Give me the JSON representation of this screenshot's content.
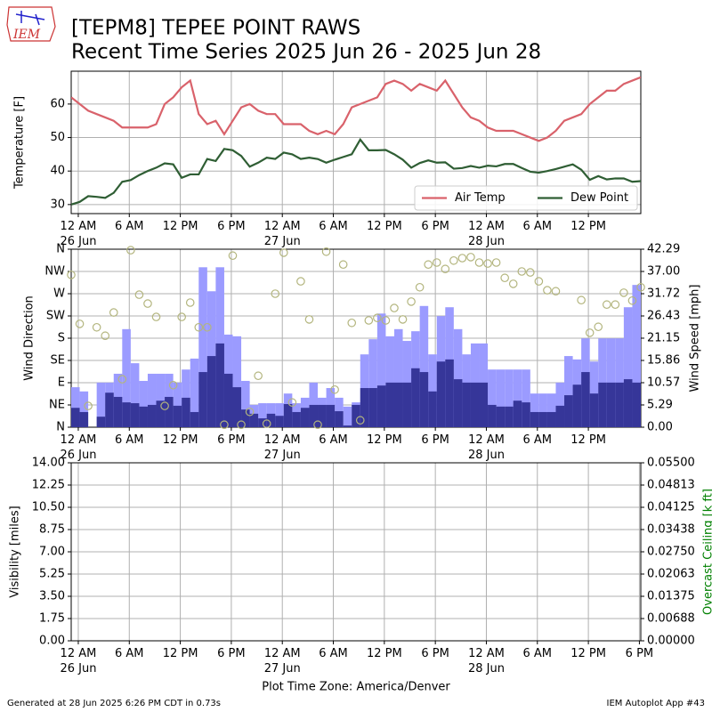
{
  "title": "[TEPM8] TEPEE POINT RAWS",
  "subtitle": "Recent Time Series 2025 Jun 26 - 2025 Jun 28",
  "logo": "IEM",
  "xlabel": "Plot Time Zone: America/Denver",
  "footer_left": "Generated at 28 Jun 2025 6:26 PM CDT in 0.73s",
  "footer_right": "IEM Autoplot App #43",
  "chart_data": [
    {
      "type": "line",
      "ylabel": "Temperature [F]",
      "grid": true,
      "legend": "lower right",
      "xlim": [
        "2025-06-25T23:10",
        "2025-06-28T18:10"
      ],
      "xticks": [
        {
          "value": "2025-06-26T00:00",
          "label": "12 AM\n26 Jun"
        },
        {
          "value": "2025-06-26T06:00",
          "label": "6 AM"
        },
        {
          "value": "2025-06-26T12:00",
          "label": "12 PM"
        },
        {
          "value": "2025-06-26T18:00",
          "label": "6 PM"
        },
        {
          "value": "2025-06-27T00:00",
          "label": "12 AM\n27 Jun"
        },
        {
          "value": "2025-06-27T06:00",
          "label": "6 AM"
        },
        {
          "value": "2025-06-27T12:00",
          "label": "12 PM"
        },
        {
          "value": "2025-06-27T18:00",
          "label": "6 PM"
        },
        {
          "value": "2025-06-28T00:00",
          "label": "12 AM\n28 Jun"
        },
        {
          "value": "2025-06-28T06:00",
          "label": "6 AM"
        },
        {
          "value": "2025-06-28T12:00",
          "label": "12 PM"
        }
      ],
      "ylim": [
        27.3,
        69.8
      ],
      "yticks": [
        30,
        40,
        50,
        60
      ],
      "x": [
        "2025-06-25T23:10",
        "2025-06-26T00:10",
        "2025-06-26T01:10",
        "2025-06-26T02:10",
        "2025-06-26T03:10",
        "2025-06-26T04:10",
        "2025-06-26T05:10",
        "2025-06-26T06:10",
        "2025-06-26T07:10",
        "2025-06-26T08:10",
        "2025-06-26T09:10",
        "2025-06-26T10:10",
        "2025-06-26T11:10",
        "2025-06-26T12:10",
        "2025-06-26T13:10",
        "2025-06-26T14:10",
        "2025-06-26T15:10",
        "2025-06-26T16:10",
        "2025-06-26T17:10",
        "2025-06-26T18:10",
        "2025-06-26T19:10",
        "2025-06-26T20:10",
        "2025-06-26T21:10",
        "2025-06-26T22:10",
        "2025-06-26T23:10",
        "2025-06-27T00:10",
        "2025-06-27T01:10",
        "2025-06-27T02:10",
        "2025-06-27T03:10",
        "2025-06-27T04:10",
        "2025-06-27T05:10",
        "2025-06-27T06:10",
        "2025-06-27T07:10",
        "2025-06-27T08:10",
        "2025-06-27T09:10",
        "2025-06-27T10:10",
        "2025-06-27T11:10",
        "2025-06-27T12:10",
        "2025-06-27T13:10",
        "2025-06-27T14:10",
        "2025-06-27T15:10",
        "2025-06-27T16:10",
        "2025-06-27T17:10",
        "2025-06-27T18:10",
        "2025-06-27T19:10",
        "2025-06-27T20:10",
        "2025-06-27T21:10",
        "2025-06-27T22:10",
        "2025-06-27T23:10",
        "2025-06-28T00:10",
        "2025-06-28T01:10",
        "2025-06-28T02:10",
        "2025-06-28T03:10",
        "2025-06-28T04:10",
        "2025-06-28T05:10",
        "2025-06-28T06:10",
        "2025-06-28T07:10",
        "2025-06-28T08:10",
        "2025-06-28T09:10",
        "2025-06-28T10:10",
        "2025-06-28T11:10",
        "2025-06-28T12:10",
        "2025-06-28T13:10",
        "2025-06-28T14:10",
        "2025-06-28T15:10",
        "2025-06-28T16:10",
        "2025-06-28T17:10",
        "2025-06-28T18:10"
      ],
      "series": [
        {
          "name": "Air Temp",
          "color": "#d9626b",
          "values": [
            62,
            60,
            58,
            57,
            56,
            55,
            53,
            53,
            53,
            53,
            54,
            60,
            62,
            65,
            67,
            57,
            54,
            55,
            51,
            55,
            59,
            60,
            58,
            57,
            57,
            54,
            54,
            54,
            52,
            51,
            52,
            51,
            54,
            59,
            60,
            61,
            62,
            66,
            67,
            66,
            64,
            66,
            65,
            64,
            67,
            63,
            59,
            56,
            55,
            53,
            52,
            52,
            52,
            51,
            50,
            49,
            50,
            52,
            55,
            56,
            57,
            60,
            62,
            64,
            64,
            66,
            67,
            68
          ]
        },
        {
          "name": "Dew Point",
          "color": "#2f5e34",
          "values": [
            30,
            30.8,
            32.5,
            32.3,
            32,
            33.5,
            36.8,
            37.3,
            38.8,
            40,
            41,
            42.3,
            42,
            38,
            39,
            39,
            43.6,
            43,
            46.6,
            46.2,
            44.5,
            41.3,
            42.5,
            44,
            43.6,
            45.5,
            45,
            43.6,
            44,
            43.6,
            42.5,
            43.4,
            44.2,
            45,
            49.4,
            46.2,
            46.2,
            46.3,
            45,
            43.4,
            41,
            42.4,
            43.2,
            42.5,
            42.6,
            40.7,
            40.9,
            41.5,
            41,
            41.6,
            41.4,
            42.1,
            42.1,
            40.9,
            39.8,
            39.5,
            40,
            40.6,
            41.3,
            42,
            40.4,
            37.4,
            38.5,
            37.5,
            37.8,
            37.8,
            36.8,
            37
          ]
        }
      ]
    },
    {
      "type": "wind",
      "ylabel": "Wind Direction",
      "y2label": "Wind Speed [mph]",
      "grid": true,
      "xlim": [
        "2025-06-25T23:10",
        "2025-06-28T18:10"
      ],
      "xticks": [
        {
          "value": "2025-06-26T00:00",
          "label": "12 AM\n26 Jun"
        },
        {
          "value": "2025-06-26T06:00",
          "label": "6 AM"
        },
        {
          "value": "2025-06-26T12:00",
          "label": "12 PM"
        },
        {
          "value": "2025-06-26T18:00",
          "label": "6 PM"
        },
        {
          "value": "2025-06-27T00:00",
          "label": "12 AM\n27 Jun"
        },
        {
          "value": "2025-06-27T06:00",
          "label": "6 AM"
        },
        {
          "value": "2025-06-27T12:00",
          "label": "12 PM"
        },
        {
          "value": "2025-06-27T18:00",
          "label": "6 PM"
        },
        {
          "value": "2025-06-28T00:00",
          "label": "12 AM\n28 Jun"
        },
        {
          "value": "2025-06-28T06:00",
          "label": "6 AM"
        },
        {
          "value": "2025-06-28T12:00",
          "label": "12 PM"
        }
      ],
      "ylim": [
        0,
        360
      ],
      "yticks": [
        {
          "value": 0,
          "label": "N"
        },
        {
          "value": 45,
          "label": "NE"
        },
        {
          "value": 90,
          "label": "E"
        },
        {
          "value": 135,
          "label": "SE"
        },
        {
          "value": 180,
          "label": "S"
        },
        {
          "value": 225,
          "label": "SW"
        },
        {
          "value": 270,
          "label": "W"
        },
        {
          "value": 315,
          "label": "NW"
        },
        {
          "value": 360,
          "label": "N"
        }
      ],
      "y2lim": [
        0,
        42.29
      ],
      "y2ticks": [
        {
          "value": 0,
          "label": "0.00"
        },
        5.29,
        10.57,
        15.86,
        21.15,
        26.43,
        31.72,
        {
          "value": 37,
          "label": "37.00"
        },
        42.29
      ],
      "x": [
        "2025-06-25T23:10",
        "2025-06-26T00:10",
        "2025-06-26T01:10",
        "2025-06-26T02:10",
        "2025-06-26T03:10",
        "2025-06-26T04:10",
        "2025-06-26T05:10",
        "2025-06-26T06:10",
        "2025-06-26T07:10",
        "2025-06-26T08:10",
        "2025-06-26T09:10",
        "2025-06-26T10:10",
        "2025-06-26T11:10",
        "2025-06-26T12:10",
        "2025-06-26T13:10",
        "2025-06-26T14:10",
        "2025-06-26T15:10",
        "2025-06-26T16:10",
        "2025-06-26T17:10",
        "2025-06-26T18:10",
        "2025-06-26T19:10",
        "2025-06-26T20:10",
        "2025-06-26T21:10",
        "2025-06-26T22:10",
        "2025-06-26T23:10",
        "2025-06-27T00:10",
        "2025-06-27T01:10",
        "2025-06-27T02:10",
        "2025-06-27T03:10",
        "2025-06-27T04:10",
        "2025-06-27T05:10",
        "2025-06-27T06:10",
        "2025-06-27T07:10",
        "2025-06-27T08:10",
        "2025-06-27T09:10",
        "2025-06-27T10:10",
        "2025-06-27T11:10",
        "2025-06-27T12:10",
        "2025-06-27T13:10",
        "2025-06-27T14:10",
        "2025-06-27T15:10",
        "2025-06-27T16:10",
        "2025-06-27T17:10",
        "2025-06-27T18:10",
        "2025-06-27T19:10",
        "2025-06-27T20:10",
        "2025-06-27T21:10",
        "2025-06-27T22:10",
        "2025-06-27T23:10",
        "2025-06-28T00:10",
        "2025-06-28T01:10",
        "2025-06-28T02:10",
        "2025-06-28T03:10",
        "2025-06-28T04:10",
        "2025-06-28T05:10",
        "2025-06-28T06:10",
        "2025-06-28T07:10",
        "2025-06-28T08:10",
        "2025-06-28T09:10",
        "2025-06-28T10:10",
        "2025-06-28T11:10",
        "2025-06-28T12:10",
        "2025-06-28T13:10",
        "2025-06-28T14:10",
        "2025-06-28T15:10",
        "2025-06-28T16:10",
        "2025-06-28T17:10",
        "2025-06-28T18:10"
      ],
      "series": [
        {
          "kind": "bar",
          "axis": "y2",
          "color": "#9b9bff",
          "values": [
            9.5,
            8.5,
            0,
            10.6,
            10.6,
            12.7,
            23.3,
            15.2,
            11,
            12.7,
            12.7,
            12.7,
            10.6,
            13.7,
            16.3,
            38,
            32.3,
            38,
            22,
            21.6,
            11,
            5.3,
            5.7,
            5.7,
            5.7,
            8,
            5.7,
            7,
            10.6,
            7,
            9.3,
            7,
            4.9,
            5.9,
            17.3,
            20.9,
            27,
            21.6,
            23.3,
            20.5,
            22.8,
            28.8,
            17.3,
            26.4,
            28.5,
            23.3,
            17.3,
            19.9,
            19.9,
            13.7,
            13.7,
            13.7,
            13.7,
            13.7,
            8,
            8,
            8,
            10.6,
            16.9,
            16.1,
            21.1,
            15.6,
            21.1,
            21.1,
            21.1,
            28.5,
            33.8,
            27
          ]
        },
        {
          "kind": "bar",
          "axis": "y2",
          "color": "#363699",
          "values": [
            4.6,
            3.6,
            0,
            2.5,
            8.2,
            7.2,
            5.9,
            5.7,
            4.9,
            5.3,
            6.3,
            7.2,
            5.1,
            7,
            3.6,
            13.1,
            16.9,
            19.9,
            12.7,
            9.5,
            4.2,
            3.2,
            2.1,
            3.2,
            2.7,
            5.5,
            3.6,
            4.6,
            5.3,
            5.3,
            5.3,
            3.8,
            0.4,
            5.3,
            9.3,
            9.3,
            9.9,
            10.6,
            10.6,
            10.6,
            14,
            13.1,
            8.5,
            15.6,
            16.1,
            11.4,
            10.6,
            10.6,
            10.6,
            5.3,
            4.9,
            4.9,
            6.3,
            5.9,
            3.6,
            3.6,
            3.6,
            5.1,
            7.6,
            10.1,
            13.1,
            8,
            10.6,
            10.6,
            10.6,
            11.4,
            10.6,
            9.3
          ]
        },
        {
          "kind": "scatter",
          "axis": "y",
          "color": "#b3b57e",
          "values": [
            308,
            209,
            43,
            202,
            185,
            232,
            97,
            358,
            268,
            250,
            223,
            43,
            85,
            223,
            252,
            202,
            202,
            null,
            5,
            347,
            5,
            31,
            104,
            7,
            270,
            353,
            50,
            295,
            218,
            5,
            355,
            76,
            329,
            211,
            14,
            216,
            221,
            216,
            241,
            218,
            254,
            283,
            329,
            333,
            320,
            337,
            342,
            344,
            333,
            331,
            333,
            302,
            290,
            315,
            313,
            295,
            277,
            275,
            null,
            null,
            257,
            191,
            203,
            248,
            248,
            272,
            256,
            283
          ]
        }
      ]
    },
    {
      "type": "line",
      "ylabel": "Visibility [miles]",
      "y2label": "Overcast Ceiling [k ft]",
      "y2color": "#008000",
      "grid": true,
      "xlim": [
        "2025-06-25T23:10",
        "2025-06-28T18:10"
      ],
      "xticks": [
        {
          "value": "2025-06-26T00:00",
          "label": "12 AM\n26 Jun"
        },
        {
          "value": "2025-06-26T06:00",
          "label": "6 AM"
        },
        {
          "value": "2025-06-26T12:00",
          "label": "12 PM"
        },
        {
          "value": "2025-06-26T18:00",
          "label": "6 PM"
        },
        {
          "value": "2025-06-27T00:00",
          "label": "12 AM\n27 Jun"
        },
        {
          "value": "2025-06-27T06:00",
          "label": "6 AM"
        },
        {
          "value": "2025-06-27T12:00",
          "label": "12 PM"
        },
        {
          "value": "2025-06-27T18:00",
          "label": "6 PM"
        },
        {
          "value": "2025-06-28T00:00",
          "label": "12 AM\n28 Jun"
        },
        {
          "value": "2025-06-28T06:00",
          "label": "6 AM"
        },
        {
          "value": "2025-06-28T12:00",
          "label": "12 PM"
        },
        {
          "value": "2025-06-28T18:00",
          "label": "6 PM"
        }
      ],
      "ylim": [
        0,
        14
      ],
      "yticks": [
        {
          "value": 0,
          "label": "0.00"
        },
        1.75,
        {
          "value": 3.5,
          "label": "3.50"
        },
        5.25,
        {
          "value": 7,
          "label": "7.00"
        },
        8.75,
        {
          "value": 10.5,
          "label": "10.50"
        },
        12.25,
        {
          "value": 14,
          "label": "14.00"
        }
      ],
      "y2lim": [
        0,
        0.055
      ],
      "y2ticks": [
        {
          "value": 0,
          "label": "0.00000"
        },
        {
          "value": 0.006875,
          "label": "0.00688"
        },
        {
          "value": 0.01375,
          "label": "0.01375"
        },
        {
          "value": 0.020625,
          "label": "0.02063"
        },
        {
          "value": 0.0275,
          "label": "0.02750"
        },
        {
          "value": 0.034375,
          "label": "0.03438"
        },
        {
          "value": 0.04125,
          "label": "0.04125"
        },
        {
          "value": 0.048125,
          "label": "0.04813"
        },
        {
          "value": 0.055,
          "label": "0.05500"
        }
      ],
      "series": []
    }
  ]
}
